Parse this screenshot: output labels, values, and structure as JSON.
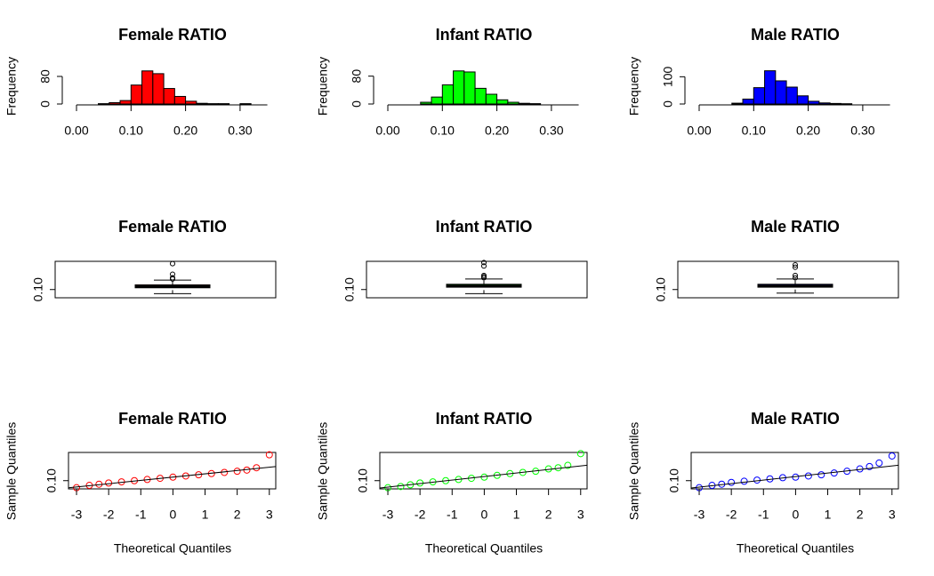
{
  "chart_data": [
    {
      "type": "histogram",
      "title": "Female RATIO",
      "ylabel": "Frequency",
      "color": "#ff0000",
      "bins": [
        0.04,
        0.06,
        0.08,
        0.1,
        0.12,
        0.14,
        0.16,
        0.18,
        0.2,
        0.22,
        0.24,
        0.26,
        0.28,
        0.3,
        0.32,
        0.34
      ],
      "values": [
        1,
        4,
        10,
        55,
        96,
        88,
        45,
        22,
        8,
        2,
        1,
        1,
        0,
        1,
        0
      ],
      "xlim": [
        0,
        0.35
      ],
      "xticks": [
        {
          "value": 0,
          "label": "0.00"
        },
        {
          "value": 0.1,
          "label": "0.10"
        },
        {
          "value": 0.2,
          "label": "0.20"
        },
        {
          "value": 0.3,
          "label": "0.30"
        }
      ],
      "ylim": [
        0,
        98
      ],
      "yticks": [
        0,
        80
      ]
    },
    {
      "type": "histogram",
      "title": "Infant RATIO",
      "ylabel": "Frequency",
      "color": "#00ff00",
      "bins": [
        0.04,
        0.06,
        0.08,
        0.1,
        0.12,
        0.14,
        0.16,
        0.18,
        0.2,
        0.22,
        0.24,
        0.26,
        0.28,
        0.3,
        0.32,
        0.34
      ],
      "values": [
        0,
        5,
        20,
        55,
        95,
        92,
        45,
        28,
        12,
        5,
        2,
        1,
        0,
        0,
        0
      ],
      "xlim": [
        0,
        0.35
      ],
      "xticks": [
        {
          "value": 0,
          "label": "0.00"
        },
        {
          "value": 0.1,
          "label": "0.10"
        },
        {
          "value": 0.2,
          "label": "0.20"
        },
        {
          "value": 0.3,
          "label": "0.30"
        }
      ],
      "ylim": [
        0,
        97
      ],
      "yticks": [
        0,
        80
      ]
    },
    {
      "type": "histogram",
      "title": "Male RATIO",
      "ylabel": "Frequency",
      "color": "#0000ff",
      "bins": [
        0.04,
        0.06,
        0.08,
        0.1,
        0.12,
        0.14,
        0.16,
        0.18,
        0.2,
        0.22,
        0.24,
        0.26,
        0.28,
        0.3,
        0.32,
        0.34
      ],
      "values": [
        0,
        3,
        18,
        60,
        122,
        85,
        62,
        30,
        10,
        4,
        2,
        1,
        0,
        0,
        0
      ],
      "xlim": [
        0,
        0.35
      ],
      "xticks": [
        {
          "value": 0,
          "label": "0.00"
        },
        {
          "value": 0.1,
          "label": "0.10"
        },
        {
          "value": 0.2,
          "label": "0.20"
        },
        {
          "value": 0.3,
          "label": "0.30"
        }
      ],
      "ylim": [
        0,
        124
      ],
      "yticks": [
        0,
        100
      ]
    },
    {
      "type": "box",
      "title": "Female RATIO",
      "color": "#ff0000",
      "box": {
        "whisker_low": 0.065,
        "q1": 0.115,
        "median": 0.125,
        "q3": 0.14,
        "whisker_high": 0.18
      },
      "outliers": [
        0.19,
        0.2,
        0.23,
        0.32
      ],
      "ylim": [
        0.03,
        0.34
      ],
      "yticks": [
        {
          "value": 0.1,
          "label": "0.10"
        }
      ]
    },
    {
      "type": "box",
      "title": "Infant RATIO",
      "color": "#00ff00",
      "box": {
        "whisker_low": 0.065,
        "q1": 0.12,
        "median": 0.13,
        "q3": 0.145,
        "whisker_high": 0.19
      },
      "outliers": [
        0.2,
        0.21,
        0.22,
        0.3,
        0.33
      ],
      "ylim": [
        0.03,
        0.34
      ],
      "yticks": [
        {
          "value": 0.1,
          "label": "0.10"
        }
      ]
    },
    {
      "type": "box",
      "title": "Male RATIO",
      "color": "#0000ff",
      "box": {
        "whisker_low": 0.07,
        "q1": 0.12,
        "median": 0.13,
        "q3": 0.145,
        "whisker_high": 0.19
      },
      "outliers": [
        0.2,
        0.22,
        0.29,
        0.31
      ],
      "ylim": [
        0.03,
        0.34
      ],
      "yticks": [
        {
          "value": 0.1,
          "label": "0.10"
        }
      ]
    },
    {
      "type": "qq",
      "title": "Female RATIO",
      "xlabel": "Theoretical Quantiles",
      "ylabel": "Sample Quantiles",
      "color": "#ff0000",
      "x": [
        -3,
        -2.6,
        -2.3,
        -2,
        -1.6,
        -1.2,
        -0.8,
        -0.4,
        0,
        0.4,
        0.8,
        1.2,
        1.6,
        2,
        2.3,
        2.6,
        3
      ],
      "values": [
        0.04,
        0.06,
        0.07,
        0.08,
        0.09,
        0.1,
        0.11,
        0.12,
        0.13,
        0.14,
        0.15,
        0.16,
        0.17,
        0.18,
        0.19,
        0.21,
        0.32
      ],
      "line": {
        "intercept": 0.13,
        "slope": 0.028
      },
      "xlim": [
        -3.25,
        3.2
      ],
      "xticks": [
        -3,
        -2,
        -1,
        0,
        1,
        2,
        3
      ],
      "ylim": [
        0.03,
        0.34
      ],
      "yticks": [
        {
          "value": 0.1,
          "label": "0.10"
        }
      ]
    },
    {
      "type": "qq",
      "title": "Infant RATIO",
      "xlabel": "Theoretical Quantiles",
      "ylabel": "Sample Quantiles",
      "color": "#00ff00",
      "x": [
        -3,
        -2.6,
        -2.3,
        -2,
        -1.6,
        -1.2,
        -0.8,
        -0.4,
        0,
        0.4,
        0.8,
        1.2,
        1.6,
        2,
        2.3,
        2.6,
        3
      ],
      "values": [
        0.04,
        0.05,
        0.065,
        0.08,
        0.09,
        0.1,
        0.11,
        0.12,
        0.13,
        0.145,
        0.16,
        0.17,
        0.18,
        0.2,
        0.21,
        0.23,
        0.33
      ],
      "line": {
        "intercept": 0.135,
        "slope": 0.03
      },
      "xlim": [
        -3.25,
        3.2
      ],
      "xticks": [
        -3,
        -2,
        -1,
        0,
        1,
        2,
        3
      ],
      "ylim": [
        0.03,
        0.34
      ],
      "yticks": [
        {
          "value": 0.1,
          "label": "0.10"
        }
      ]
    },
    {
      "type": "qq",
      "title": "Male RATIO",
      "xlabel": "Theoretical Quantiles",
      "ylabel": "Sample Quantiles",
      "color": "#0000ff",
      "x": [
        -3,
        -2.6,
        -2.3,
        -2,
        -1.6,
        -1.2,
        -0.8,
        -0.4,
        0,
        0.4,
        0.8,
        1.2,
        1.6,
        2,
        2.3,
        2.6,
        3
      ],
      "values": [
        0.04,
        0.06,
        0.07,
        0.085,
        0.095,
        0.105,
        0.115,
        0.125,
        0.13,
        0.14,
        0.15,
        0.165,
        0.18,
        0.2,
        0.22,
        0.25,
        0.31
      ],
      "line": {
        "intercept": 0.135,
        "slope": 0.03
      },
      "xlim": [
        -3.25,
        3.2
      ],
      "xticks": [
        -3,
        -2,
        -1,
        0,
        1,
        2,
        3
      ],
      "ylim": [
        0.03,
        0.34
      ],
      "yticks": [
        {
          "value": 0.1,
          "label": "0.10"
        }
      ]
    }
  ]
}
